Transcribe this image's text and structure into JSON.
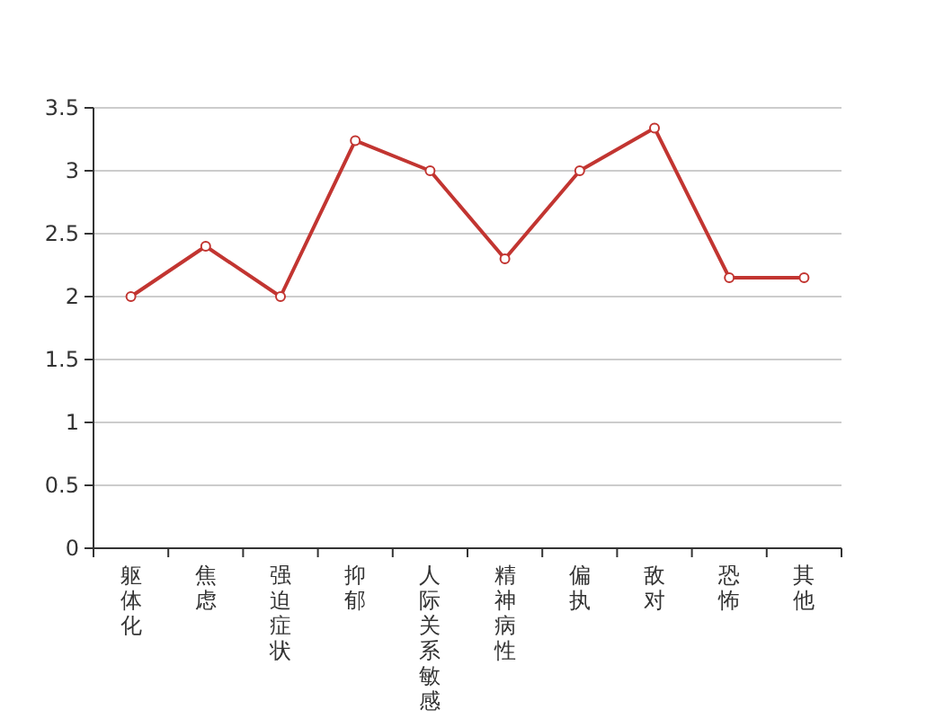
{
  "chart_data": {
    "type": "line",
    "categories": [
      "躯体化",
      "焦虑",
      "强迫症状",
      "抑郁",
      "人际关系敏感",
      "精神病性",
      "偏执",
      "敌对",
      "恐怖",
      "其他"
    ],
    "series": [
      {
        "color": "#c23531",
        "values": [
          2.0,
          2.4,
          2.0,
          3.24,
          3.0,
          2.3,
          3.0,
          3.34,
          2.15,
          2.15
        ]
      }
    ],
    "ylim": [
      0,
      3.5
    ],
    "yticks": [
      0,
      0.5,
      1,
      1.5,
      2,
      2.5,
      3,
      3.5
    ],
    "grid": "y",
    "marker": "circle",
    "line_style": "solid"
  }
}
